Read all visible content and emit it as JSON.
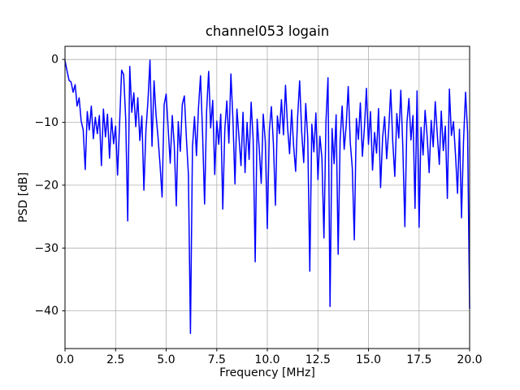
{
  "chart_data": {
    "type": "line",
    "title": "channel053 logain",
    "xlabel": "Frequency [MHz]",
    "ylabel": "PSD [dB]",
    "xlim": [
      0,
      20
    ],
    "ylim": [
      -46.0,
      2.1
    ],
    "xticks": [
      0.0,
      2.5,
      5.0,
      7.5,
      10.0,
      12.5,
      15.0,
      17.5,
      20.0
    ],
    "xtick_labels": [
      "0.0",
      "2.5",
      "5.0",
      "7.5",
      "10.0",
      "12.5",
      "15.0",
      "17.5",
      "20.0"
    ],
    "yticks": [
      0,
      -10,
      -20,
      -30,
      -40
    ],
    "ytick_labels": [
      "0",
      "−10",
      "−20",
      "−30",
      "−40"
    ],
    "grid": true,
    "legend": "none",
    "line_color": "#0000ff",
    "grid_color": "#b0b0b0",
    "spine_color": "#000000",
    "x_start": 0.0,
    "x_step": 0.1,
    "values": [
      -0.2,
      -1.8,
      -3.3,
      -3.6,
      -5.2,
      -4.0,
      -7.4,
      -6.1,
      -9.8,
      -11.2,
      -17.5,
      -8.3,
      -11.2,
      -7.4,
      -12.6,
      -9.2,
      -11.8,
      -8.9,
      -16.9,
      -7.9,
      -12.3,
      -8.7,
      -15.7,
      -9.3,
      -13.4,
      -10.6,
      -18.4,
      -10.2,
      -1.7,
      -2.4,
      -9.4,
      -25.7,
      -1.1,
      -8.4,
      -5.3,
      -10.7,
      -6.1,
      -12.9,
      -9.0,
      -20.8,
      -11.3,
      -6.6,
      -0.1,
      -13.8,
      -3.4,
      -8.9,
      -12.4,
      -16.8,
      -21.9,
      -7.2,
      -5.5,
      -11.0,
      -16.5,
      -8.9,
      -13.7,
      -23.3,
      -9.9,
      -14.6,
      -7.1,
      -5.8,
      -12.5,
      -18.3,
      -43.6,
      -13.9,
      -9.1,
      -15.3,
      -7.7,
      -2.6,
      -11.7,
      -23.0,
      -8.2,
      -1.9,
      -10.9,
      -6.5,
      -18.3,
      -9.8,
      -13.5,
      -8.7,
      -23.8,
      -11.1,
      -6.6,
      -13.3,
      -2.3,
      -9.6,
      -19.8,
      -7.9,
      -12.3,
      -16.9,
      -8.4,
      -18.0,
      -10.0,
      -15.9,
      -6.8,
      -12.8,
      -32.2,
      -9.5,
      -14.1,
      -19.7,
      -8.7,
      -13.0,
      -26.9,
      -11.3,
      -7.5,
      -13.4,
      -23.2,
      -9.0,
      -11.8,
      -6.4,
      -12.0,
      -4.1,
      -10.7,
      -15.0,
      -8.0,
      -13.8,
      -17.8,
      -9.2,
      -3.4,
      -11.5,
      -16.4,
      -7.0,
      -12.6,
      -33.7,
      -10.3,
      -14.7,
      -8.5,
      -19.1,
      -12.2,
      -15.6,
      -28.4,
      -9.8,
      -2.9,
      -39.3,
      -11.0,
      -16.6,
      -8.8,
      -31.0,
      -12.9,
      -7.4,
      -14.3,
      -10.5,
      -4.3,
      -13.2,
      -17.3,
      -28.7,
      -9.4,
      -12.7,
      -6.9,
      -15.4,
      -10.9,
      -4.6,
      -13.5,
      -8.3,
      -17.6,
      -11.6,
      -14.9,
      -7.8,
      -20.4,
      -12.4,
      -9.1,
      -15.8,
      -11.2,
      -4.8,
      -13.1,
      -18.6,
      -8.6,
      -12.5,
      -4.9,
      -14.0,
      -26.6,
      -10.1,
      -6.2,
      -12.8,
      -8.9,
      -23.7,
      -5.0,
      -26.7,
      -10.8,
      -15.2,
      -8.1,
      -12.2,
      -18.0,
      -9.7,
      -13.9,
      -6.7,
      -11.9,
      -16.7,
      -8.2,
      -14.5,
      -10.6,
      -22.1,
      -4.7,
      -12.1,
      -9.9,
      -15.1,
      -21.3,
      -11.1,
      -25.2,
      -13.0,
      -5.2,
      -11.5,
      -39.6
    ]
  }
}
